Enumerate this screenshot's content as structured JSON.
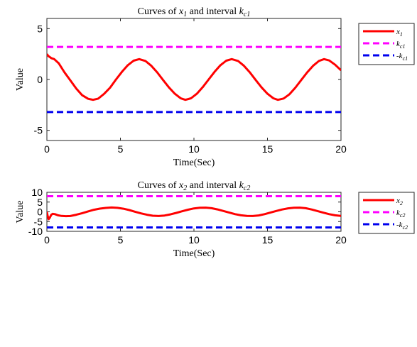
{
  "chart_data": [
    {
      "type": "line",
      "title": "Curves of x₁ and interval k_c1",
      "title_parts": [
        "Curves of ",
        "x",
        "1",
        " and interval ",
        "k",
        "c1"
      ],
      "xlabel": "Time(Sec)",
      "ylabel": "Value",
      "xlim": [
        0,
        20
      ],
      "ylim": [
        -6,
        6
      ],
      "xticks": [
        0,
        5,
        10,
        15,
        20
      ],
      "yticks": [
        5,
        0,
        -5
      ],
      "grid": false,
      "legend_position": "outside-top-right",
      "series": [
        {
          "name": "x₁",
          "name_parts": [
            "",
            "x",
            "1"
          ],
          "color": "#ff0000",
          "dash": "solid",
          "x": [
            0,
            0.1,
            0.3,
            0.5,
            0.8,
            1.2,
            1.6,
            2.0,
            2.4,
            2.8,
            3.14,
            3.5,
            3.9,
            4.3,
            4.7,
            5.1,
            5.5,
            5.9,
            6.28,
            6.7,
            7.1,
            7.5,
            7.9,
            8.3,
            8.7,
            9.1,
            9.42,
            9.8,
            10.2,
            10.6,
            11.0,
            11.4,
            11.8,
            12.2,
            12.57,
            13.0,
            13.4,
            13.8,
            14.2,
            14.6,
            15.0,
            15.4,
            15.71,
            16.1,
            16.5,
            16.9,
            17.3,
            17.7,
            18.1,
            18.5,
            18.85,
            19.2,
            19.6,
            20.0
          ],
          "y": [
            2.5,
            2.3,
            2.1,
            2.0,
            1.6,
            0.7,
            -0.1,
            -0.9,
            -1.55,
            -1.9,
            -2.0,
            -1.88,
            -1.4,
            -0.8,
            -0.0,
            0.75,
            1.4,
            1.85,
            2.0,
            1.82,
            1.35,
            0.7,
            -0.05,
            -0.78,
            -1.4,
            -1.85,
            -2.0,
            -1.85,
            -1.4,
            -0.75,
            0.0,
            0.75,
            1.4,
            1.85,
            2.0,
            1.82,
            1.35,
            0.7,
            -0.05,
            -0.78,
            -1.4,
            -1.85,
            -2.0,
            -1.87,
            -1.45,
            -0.8,
            -0.05,
            0.7,
            1.35,
            1.82,
            2.0,
            1.87,
            1.45,
            0.9
          ]
        },
        {
          "name": "k_c1",
          "name_parts": [
            "",
            "k",
            "c1"
          ],
          "color": "#ff00ff",
          "dash": "dashed",
          "x": [
            0,
            20
          ],
          "y": [
            3.2,
            3.2
          ]
        },
        {
          "name": "-k_c1",
          "name_parts": [
            "-",
            "k",
            "c1"
          ],
          "color": "#0000ee",
          "dash": "dashed",
          "x": [
            0,
            20
          ],
          "y": [
            -3.2,
            -3.2
          ]
        }
      ]
    },
    {
      "type": "line",
      "title": "Curves of x₂ and interval k_c2",
      "title_parts": [
        "Curves of ",
        "x",
        "2",
        " and interval ",
        "k",
        "c2"
      ],
      "xlabel": "Time(Sec)",
      "ylabel": "Value",
      "xlim": [
        0,
        20
      ],
      "ylim": [
        -10,
        10
      ],
      "xticks": [
        0,
        5,
        10,
        15,
        20
      ],
      "yticks": [
        10,
        5,
        0,
        -5,
        -10
      ],
      "grid": false,
      "legend_position": "outside-top-right",
      "series": [
        {
          "name": "x₂",
          "name_parts": [
            "",
            "x",
            "2"
          ],
          "color": "#ff0000",
          "dash": "solid",
          "x": [
            0,
            0.05,
            0.12,
            0.2,
            0.3,
            0.4,
            0.55,
            0.75,
            1.0,
            1.3,
            1.6,
            2.0,
            2.4,
            2.8,
            3.2,
            3.6,
            4.0,
            4.4,
            4.8,
            5.2,
            5.6,
            6.0,
            6.4,
            6.8,
            7.2,
            7.6,
            8.0,
            8.4,
            8.8,
            9.2,
            9.6,
            10.0,
            10.4,
            10.8,
            11.2,
            11.6,
            12.0,
            12.4,
            12.8,
            13.2,
            13.6,
            14.0,
            14.4,
            14.8,
            15.2,
            15.6,
            16.0,
            16.4,
            16.8,
            17.2,
            17.6,
            18.0,
            18.4,
            18.8,
            19.2,
            19.6,
            20.0
          ],
          "y": [
            0,
            -2.0,
            -3.8,
            -3.0,
            -1.5,
            -1.0,
            -1.2,
            -1.8,
            -2.1,
            -2.2,
            -2.15,
            -1.5,
            -0.7,
            0.2,
            1.05,
            1.65,
            2.0,
            2.2,
            2.05,
            1.6,
            0.9,
            0.05,
            -0.8,
            -1.5,
            -2.0,
            -2.15,
            -1.9,
            -1.3,
            -0.55,
            0.3,
            1.1,
            1.75,
            2.1,
            2.15,
            1.85,
            1.25,
            0.45,
            -0.4,
            -1.2,
            -1.8,
            -2.1,
            -2.15,
            -1.85,
            -1.2,
            -0.4,
            0.45,
            1.2,
            1.8,
            2.1,
            2.15,
            1.85,
            1.2,
            0.4,
            -0.45,
            -1.2,
            -1.8,
            -2.1
          ]
        },
        {
          "name": "k_c2",
          "name_parts": [
            "",
            "k",
            "c2"
          ],
          "color": "#ff00ff",
          "dash": "dashed",
          "x": [
            0,
            20
          ],
          "y": [
            8,
            8
          ]
        },
        {
          "name": "-k_c2",
          "name_parts": [
            "-",
            "k",
            "c2"
          ],
          "color": "#0000ee",
          "dash": "dashed",
          "x": [
            0,
            20
          ],
          "y": [
            -8,
            -8
          ]
        }
      ]
    }
  ]
}
